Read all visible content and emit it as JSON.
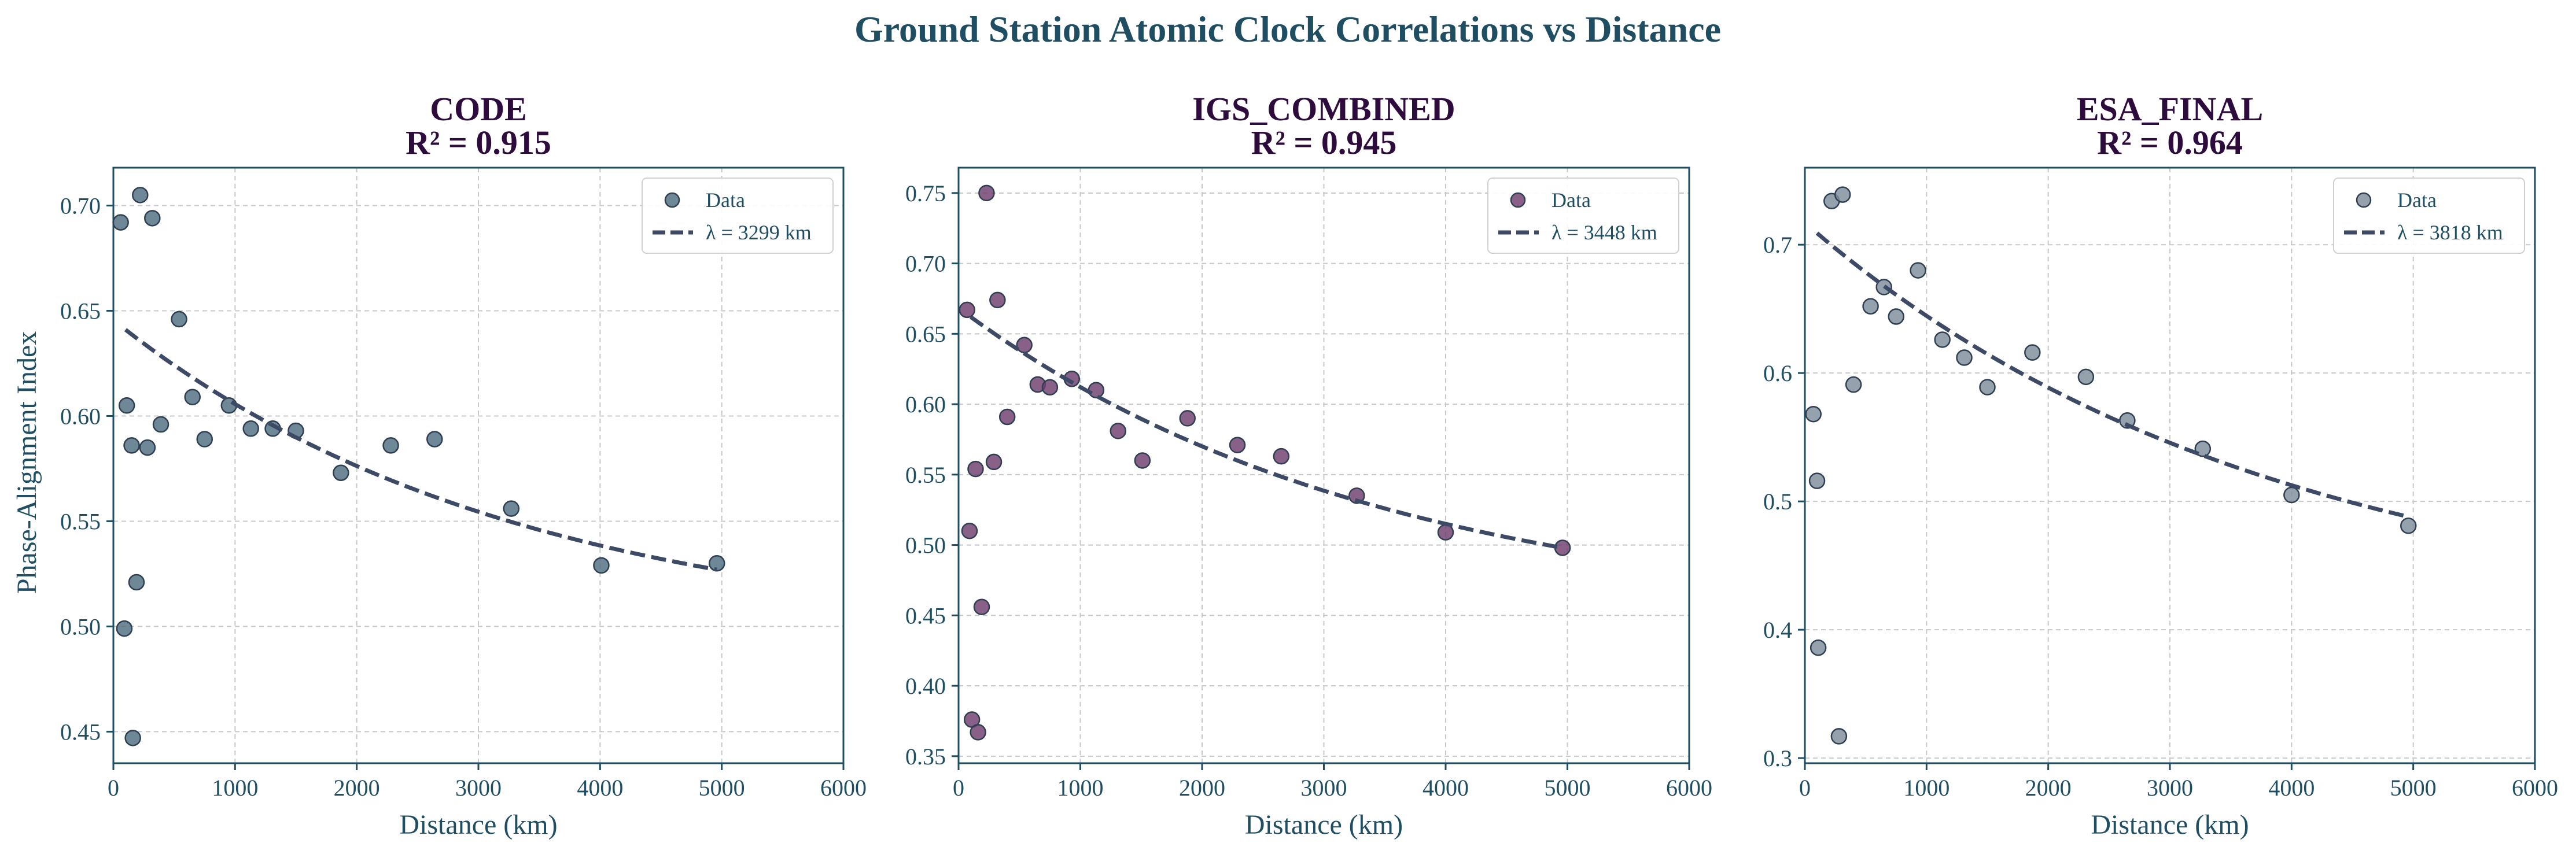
{
  "suptitle": "Ground Station Atomic Clock Correlations vs Distance",
  "shared_ylabel": "Phase-Alignment Index",
  "colors": {
    "text": "#1f4e63",
    "title": "#2e0b3d",
    "fit": "#3d4a66"
  },
  "chart_data": [
    {
      "type": "scatter",
      "title": "CODE",
      "r2_label": "R² = 0.915",
      "xlabel": "Distance (km)",
      "ylabel": "Phase-Alignment Index",
      "xlim": [
        0,
        6000
      ],
      "ylim": [
        0.435,
        0.718
      ],
      "xticks": [
        0,
        1000,
        2000,
        3000,
        4000,
        5000,
        6000
      ],
      "yticks": [
        0.45,
        0.5,
        0.55,
        0.6,
        0.65,
        0.7
      ],
      "grid": true,
      "legend_position": "top-right",
      "point_color": "#4f6e80",
      "series": [
        {
          "name": "Data",
          "x": [
            60,
            90,
            110,
            150,
            160,
            190,
            220,
            280,
            320,
            390,
            540,
            650,
            750,
            950,
            1130,
            1310,
            1500,
            1870,
            2280,
            2640,
            3270,
            4010,
            4960
          ],
          "y": [
            0.692,
            0.499,
            0.605,
            0.586,
            0.447,
            0.521,
            0.705,
            0.585,
            0.694,
            0.596,
            0.646,
            0.609,
            0.589,
            0.605,
            0.594,
            0.594,
            0.593,
            0.573,
            0.586,
            0.589,
            0.556,
            0.529,
            0.53
          ]
        }
      ],
      "fit": {
        "name": "λ = 3299 km",
        "x_range": [
          100,
          4960
        ],
        "y_start": 0.641,
        "y_end": 0.527
      }
    },
    {
      "type": "scatter",
      "title": "IGS_COMBINED",
      "r2_label": "R² = 0.945",
      "xlabel": "Distance (km)",
      "ylabel": "",
      "xlim": [
        0,
        6000
      ],
      "ylim": [
        0.345,
        0.768
      ],
      "xticks": [
        0,
        1000,
        2000,
        3000,
        4000,
        5000,
        6000
      ],
      "yticks": [
        0.35,
        0.4,
        0.45,
        0.5,
        0.55,
        0.6,
        0.65,
        0.7,
        0.75
      ],
      "grid": true,
      "legend_position": "top-right",
      "point_color": "#6e3d6e",
      "series": [
        {
          "name": "Data",
          "x": [
            70,
            90,
            110,
            140,
            160,
            190,
            230,
            290,
            320,
            400,
            540,
            650,
            750,
            930,
            1130,
            1310,
            1510,
            1880,
            2290,
            2650,
            3270,
            4000,
            4960
          ],
          "y": [
            0.667,
            0.51,
            0.376,
            0.554,
            0.367,
            0.456,
            0.75,
            0.559,
            0.674,
            0.591,
            0.642,
            0.614,
            0.612,
            0.618,
            0.61,
            0.581,
            0.56,
            0.59,
            0.571,
            0.563,
            0.535,
            0.509,
            0.498
          ]
        }
      ],
      "fit": {
        "name": "λ = 3448 km",
        "x_range": [
          100,
          4960
        ],
        "y_start": 0.662,
        "y_end": 0.498
      }
    },
    {
      "type": "scatter",
      "title": "ESA_FINAL",
      "r2_label": "R² = 0.964",
      "xlabel": "Distance (km)",
      "ylabel": "",
      "xlim": [
        0,
        6000
      ],
      "ylim": [
        0.296,
        0.76
      ],
      "xticks": [
        0,
        1000,
        2000,
        3000,
        4000,
        5000,
        6000
      ],
      "yticks": [
        0.3,
        0.4,
        0.5,
        0.6,
        0.7
      ],
      "grid": true,
      "legend_position": "top-right",
      "point_color": "#7f8c9c",
      "series": [
        {
          "name": "Data",
          "x": [
            70,
            100,
            110,
            220,
            280,
            310,
            400,
            540,
            650,
            750,
            930,
            1130,
            1310,
            1500,
            1870,
            2310,
            2650,
            3270,
            4000,
            4960
          ],
          "y": [
            0.568,
            0.516,
            0.386,
            0.734,
            0.317,
            0.739,
            0.591,
            0.652,
            0.667,
            0.644,
            0.68,
            0.626,
            0.612,
            0.589,
            0.616,
            0.597,
            0.563,
            0.541,
            0.505,
            0.481
          ]
        }
      ],
      "fit": {
        "name": "λ = 3818 km",
        "x_range": [
          100,
          4960
        ],
        "y_start": 0.709,
        "y_end": 0.488
      }
    }
  ]
}
